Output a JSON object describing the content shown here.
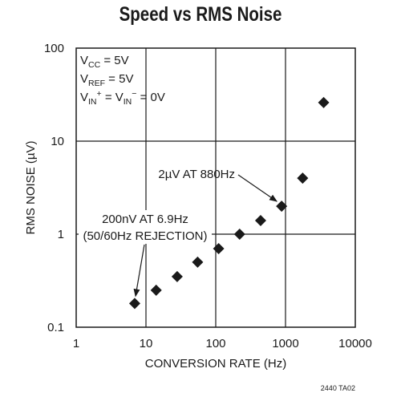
{
  "chart_data": {
    "type": "scatter",
    "title": "Speed vs RMS Noise",
    "xlabel": "CONVERSION RATE (Hz)",
    "ylabel": "RMS NOISE (µV)",
    "xscale": "log",
    "yscale": "log",
    "xlim": [
      1,
      10000
    ],
    "ylim": [
      0.1,
      100
    ],
    "x_ticks": [
      "1",
      "10",
      "100",
      "1000",
      "10000"
    ],
    "y_ticks": [
      "0.1",
      "1",
      "10",
      "100"
    ],
    "grid": true,
    "marker": "diamond",
    "points": [
      {
        "x": 6.9,
        "y": 0.18
      },
      {
        "x": 14,
        "y": 0.25
      },
      {
        "x": 28,
        "y": 0.35
      },
      {
        "x": 55,
        "y": 0.5
      },
      {
        "x": 110,
        "y": 0.7
      },
      {
        "x": 220,
        "y": 1.0
      },
      {
        "x": 440,
        "y": 1.4
      },
      {
        "x": 880,
        "y": 2.0
      },
      {
        "x": 1760,
        "y": 4.0
      },
      {
        "x": 3520,
        "y": 26
      }
    ],
    "conditions": [
      {
        "base": "V",
        "sub": "CC",
        "sup": "",
        "rest": " = 5V"
      },
      {
        "base": "V",
        "sub": "REF",
        "sup": "",
        "rest": " = 5V"
      }
    ],
    "condition3": {
      "a_base": "V",
      "a_sub": "IN",
      "a_sup": "+",
      "mid": " = V",
      "b_sub": "IN",
      "b_sup": "−",
      "rest": " = 0V"
    },
    "annotations": [
      {
        "text": "2µV AT 880Hz",
        "target_x": 880,
        "target_y": 2.0
      },
      {
        "lines": [
          "200nV AT 6.9Hz",
          "(50/60Hz REJECTION)"
        ],
        "target_x": 6.9,
        "target_y": 0.18
      }
    ],
    "footnote": "2440 TA02"
  }
}
